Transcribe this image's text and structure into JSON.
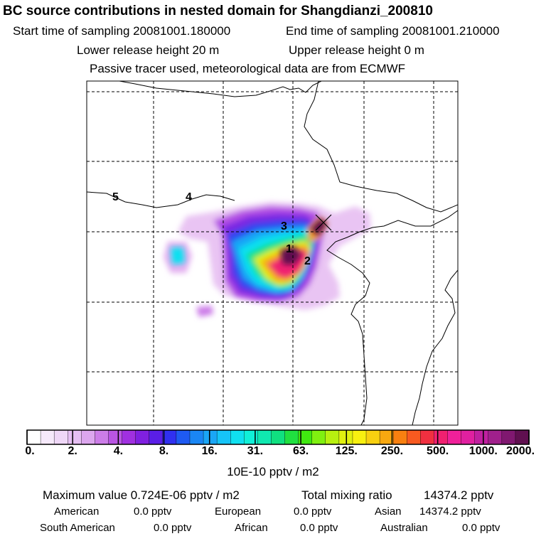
{
  "header": {
    "title": "BC  source contributions in nested domain for Shangdianzi_200810",
    "start_label": "Start time of sampling 20081001.180000",
    "end_label": "End time of sampling 20081001.210000",
    "lower_label": "Lower release height   20 m",
    "upper_label": "Upper release height    0 m",
    "tracer_label": "Passive tracer used, meteorological data are from ECMWF"
  },
  "map": {
    "region_labels": [
      "1",
      "2",
      "3",
      "4",
      "5"
    ],
    "receptor_marker": "x-marker"
  },
  "colorbar": {
    "colors": [
      "#ffffff",
      "#f6e9fb",
      "#efd7f7",
      "#e6bff3",
      "#dca6ee",
      "#cc7de8",
      "#b955e3",
      "#a030e0",
      "#8020e0",
      "#5a1ee6",
      "#3030f0",
      "#1e5af2",
      "#1a86f4",
      "#1aa6f6",
      "#16c4f8",
      "#10e0f0",
      "#10f0d8",
      "#10e8b0",
      "#10e080",
      "#20e040",
      "#40e810",
      "#80f010",
      "#b8f010",
      "#e0f010",
      "#f8f010",
      "#f8d010",
      "#f8a810",
      "#f88010",
      "#f85a20",
      "#f03040",
      "#f02070",
      "#f0209a",
      "#e020a0",
      "#c020a0",
      "#a0208c",
      "#801870",
      "#601050"
    ],
    "labels": [
      "0.",
      "2.",
      "4.",
      "8.",
      "16.",
      "31.",
      "63.",
      "125.",
      "250.",
      "500.",
      "1000.",
      "2000."
    ],
    "unit": "10E-10 pptv / m2"
  },
  "stats": {
    "max_label": "Maximum value  0.724E-06 pptv / m2",
    "total_label": "Total mixing ratio",
    "total_value": "14374.2 pptv",
    "american_label": "American",
    "american_value": "0.0 pptv",
    "european_label": "European",
    "european_value": "0.0 pptv",
    "asian_label": "Asian",
    "asian_value": "14374.2 pptv",
    "south_american_label": "South American",
    "south_american_value": "0.0 pptv",
    "african_label": "African",
    "african_value": "0.0 pptv",
    "australian_label": "Australian",
    "australian_value": "0.0 pptv"
  }
}
